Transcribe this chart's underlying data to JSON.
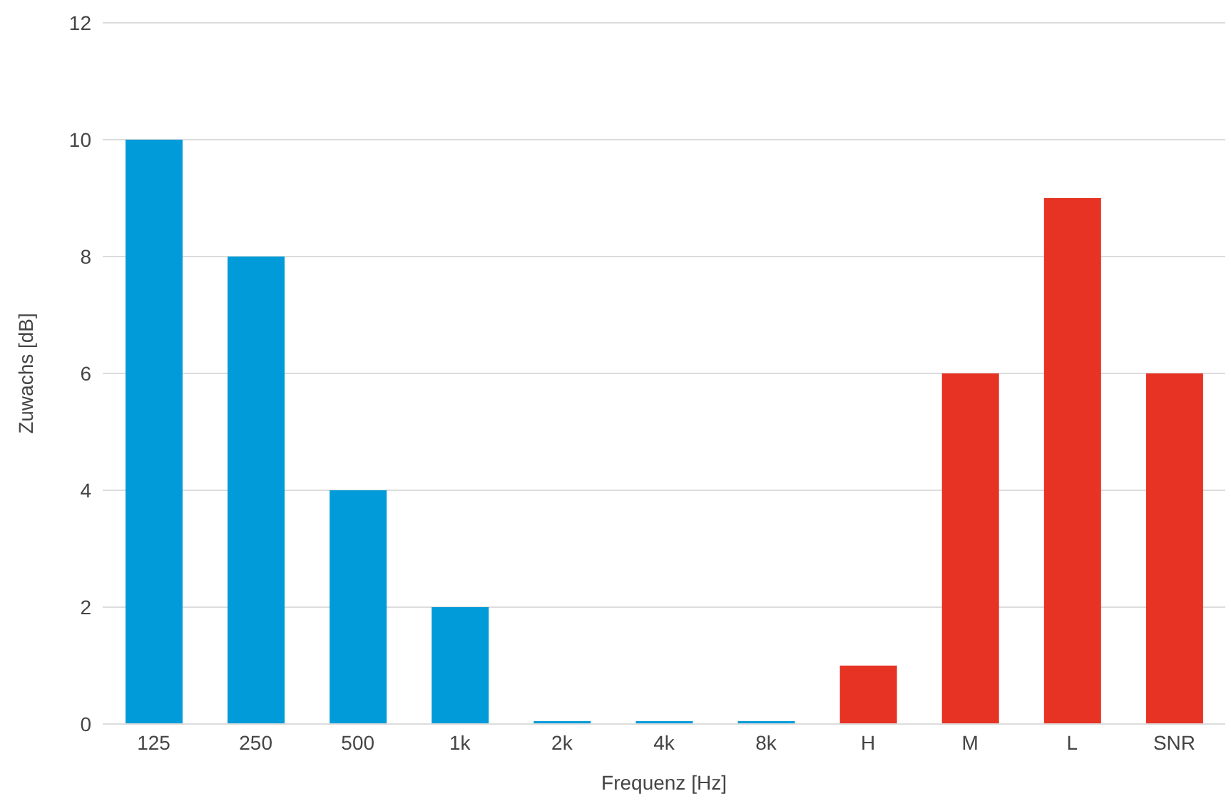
{
  "chart_data": {
    "type": "bar",
    "xlabel": "Frequenz [Hz]",
    "ylabel": "Zuwachs [dB]",
    "categories": [
      "125",
      "250",
      "500",
      "1k",
      "2k",
      "4k",
      "8k",
      "H",
      "M",
      "L",
      "SNR"
    ],
    "values": [
      10,
      8,
      4,
      2,
      0.05,
      0.05,
      0.05,
      1,
      6,
      9,
      6
    ],
    "colors": [
      "#009bd8",
      "#009bd8",
      "#009bd8",
      "#009bd8",
      "#009bd8",
      "#009bd8",
      "#009bd8",
      "#e63323",
      "#e63323",
      "#e63323",
      "#e63323"
    ],
    "ylim": [
      0,
      12
    ],
    "yticks": [
      0,
      2,
      4,
      6,
      8,
      10,
      12
    ],
    "grid": "y"
  }
}
